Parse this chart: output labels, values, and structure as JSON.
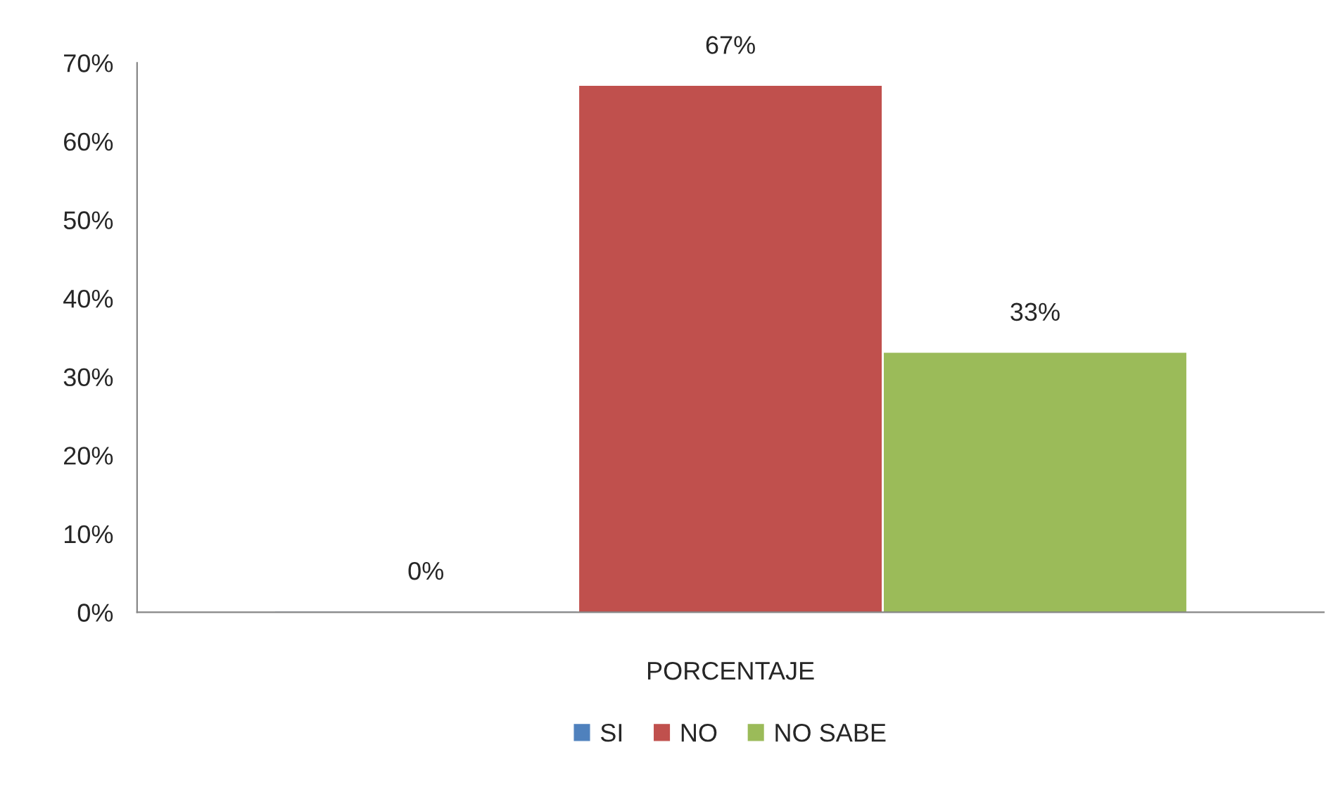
{
  "chart_data": {
    "type": "bar",
    "categories": [
      "PORCENTAJE"
    ],
    "series": [
      {
        "name": "SI",
        "color": "#4f81bd",
        "values": [
          0
        ],
        "value_labels": [
          "0%"
        ]
      },
      {
        "name": "NO",
        "color": "#c0504d",
        "values": [
          67
        ],
        "value_labels": [
          "67%"
        ]
      },
      {
        "name": "NO SABE",
        "color": "#9bbb59",
        "values": [
          33
        ],
        "value_labels": [
          "33%"
        ]
      }
    ],
    "ylim": [
      0,
      70
    ],
    "yticks": [
      {
        "value": 0,
        "label": "0%"
      },
      {
        "value": 10,
        "label": "10%"
      },
      {
        "value": 20,
        "label": "20%"
      },
      {
        "value": 30,
        "label": "30%"
      },
      {
        "value": 40,
        "label": "40%"
      },
      {
        "value": 50,
        "label": "50%"
      },
      {
        "value": 60,
        "label": "60%"
      },
      {
        "value": 70,
        "label": "70%"
      }
    ],
    "grid": false,
    "legend": "bottom"
  }
}
